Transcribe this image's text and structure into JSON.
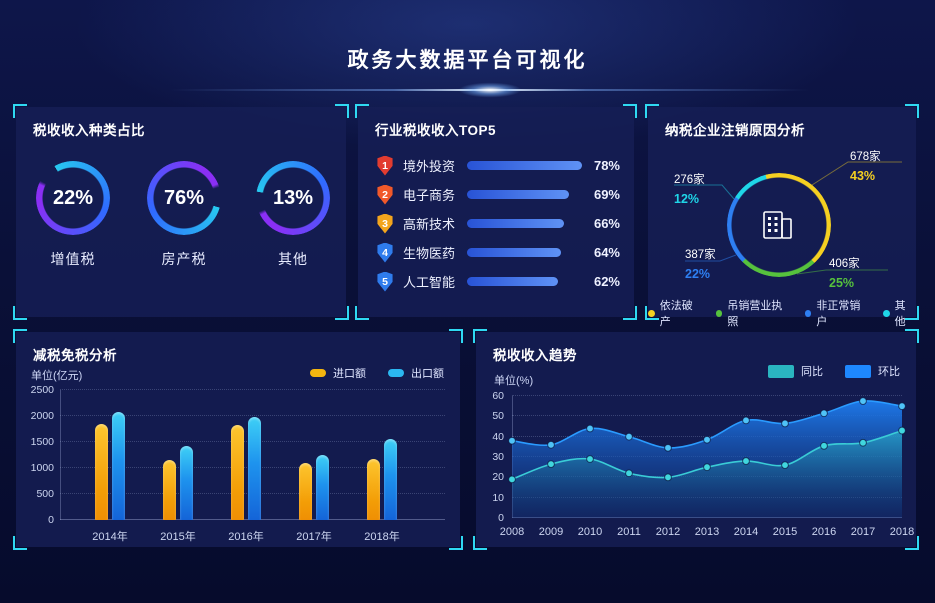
{
  "header": {
    "title": "政务大数据平台可视化"
  },
  "colors": {
    "bracket": "#2fd9f2",
    "ring_gradient": [
      "#27c8f0",
      "#2f6bff",
      "#8a2ff5"
    ],
    "top5_bar": [
      "#2853d6",
      "#5f92f5"
    ],
    "import_yellow": "#f3b50f",
    "export_blue": "#2bb7f0",
    "yoy_teal": "#2ab5c0",
    "mom_blue": "#1e88ff"
  },
  "panel_tax_type": {
    "title": "税收收入种类占比",
    "gauges": [
      {
        "pct": "22%",
        "label": "增值税"
      },
      {
        "pct": "76%",
        "label": "房产税"
      },
      {
        "pct": "13%",
        "label": "其他"
      }
    ]
  },
  "panel_top5": {
    "title": "行业税收收入TOP5",
    "rows": [
      {
        "rank": "1",
        "label": "境外投资",
        "pct": "78%",
        "badge_color": "#e23c30"
      },
      {
        "rank": "2",
        "label": "电子商务",
        "pct": "69%",
        "badge_color": "#f1592a"
      },
      {
        "rank": "3",
        "label": "高新技术",
        "pct": "66%",
        "badge_color": "#f3a51d"
      },
      {
        "rank": "4",
        "label": "生物医药",
        "pct": "64%",
        "badge_color": "#2f7ced"
      },
      {
        "rank": "5",
        "label": "人工智能",
        "pct": "62%",
        "badge_color": "#2f7ced"
      }
    ]
  },
  "panel_deregister": {
    "title": "纳税企业注销原因分析",
    "slices": [
      {
        "label": "依法破产",
        "count": "678家",
        "pct": "43%",
        "value": 43,
        "color": "#f5d021"
      },
      {
        "label": "吊销营业执照",
        "count": "406家",
        "pct": "25%",
        "value": 25,
        "color": "#56c23d"
      },
      {
        "label": "非正常销户",
        "count": "387家",
        "pct": "22%",
        "value": 22,
        "color": "#2e7ff2"
      },
      {
        "label": "其他",
        "count": "276家",
        "pct": "12%",
        "value": 12,
        "color": "#1fd6e8"
      }
    ]
  },
  "panel_tax_relief": {
    "title": "减税免税分析",
    "unit": "单位(亿元)",
    "legend": [
      "进口额",
      "出口额"
    ]
  },
  "panel_trend": {
    "title": "税收收入趋势",
    "unit": "单位(%)",
    "legend": [
      "同比",
      "环比"
    ]
  },
  "chart_data": [
    {
      "id": "tax-type-gauges",
      "type": "donut",
      "title": "税收收入种类占比",
      "items": [
        {
          "label": "增值税",
          "value": 22
        },
        {
          "label": "房产税",
          "value": 76
        },
        {
          "label": "其他",
          "value": 13
        }
      ],
      "unit": "%"
    },
    {
      "id": "industry-top5",
      "type": "bar",
      "orientation": "horizontal",
      "title": "行业税收收入TOP5",
      "categories": [
        "境外投资",
        "电子商务",
        "高新技术",
        "生物医药",
        "人工智能"
      ],
      "values": [
        78,
        69,
        66,
        64,
        62
      ],
      "unit": "%",
      "xlim": [
        0,
        78
      ]
    },
    {
      "id": "deregister-reasons",
      "type": "pie",
      "title": "纳税企业注销原因分析",
      "slices": [
        {
          "label": "依法破产",
          "count": 678,
          "pct": 43
        },
        {
          "label": "吊销营业执照",
          "count": 406,
          "pct": 25
        },
        {
          "label": "非正常销户",
          "count": 387,
          "pct": 22
        },
        {
          "label": "其他",
          "count": 276,
          "pct": 12
        }
      ],
      "legend_position": "bottom"
    },
    {
      "id": "tax-relief",
      "type": "bar",
      "title": "减税免税分析",
      "ylabel": "单位(亿元)",
      "categories": [
        "2014年",
        "2015年",
        "2016年",
        "2017年",
        "2018年"
      ],
      "series": [
        {
          "name": "进口额",
          "values": [
            1850,
            1150,
            1820,
            1100,
            1170
          ]
        },
        {
          "name": "出口额",
          "values": [
            2080,
            1430,
            1980,
            1250,
            1560
          ]
        }
      ],
      "ylim": [
        0,
        2500
      ],
      "yticks": [
        0,
        500,
        1000,
        1500,
        2000,
        2500
      ],
      "grid": "dotted",
      "legend_position": "top-right"
    },
    {
      "id": "revenue-trend",
      "type": "area",
      "title": "税收收入趋势",
      "ylabel": "单位(%)",
      "x": [
        2008,
        2009,
        2010,
        2011,
        2012,
        2013,
        2014,
        2015,
        2016,
        2017,
        2018
      ],
      "series": [
        {
          "name": "同比",
          "values": [
            19,
            26.5,
            29,
            22,
            20,
            25,
            28,
            26,
            35.5,
            37,
            43
          ]
        },
        {
          "name": "环比",
          "values": [
            38,
            36,
            44,
            40,
            34.5,
            38.5,
            48,
            46.5,
            51.5,
            57.5,
            55
          ]
        }
      ],
      "ylim": [
        0,
        60
      ],
      "yticks": [
        0,
        10,
        20,
        30,
        40,
        50,
        60
      ],
      "grid": "dotted",
      "legend_position": "top-right"
    }
  ]
}
